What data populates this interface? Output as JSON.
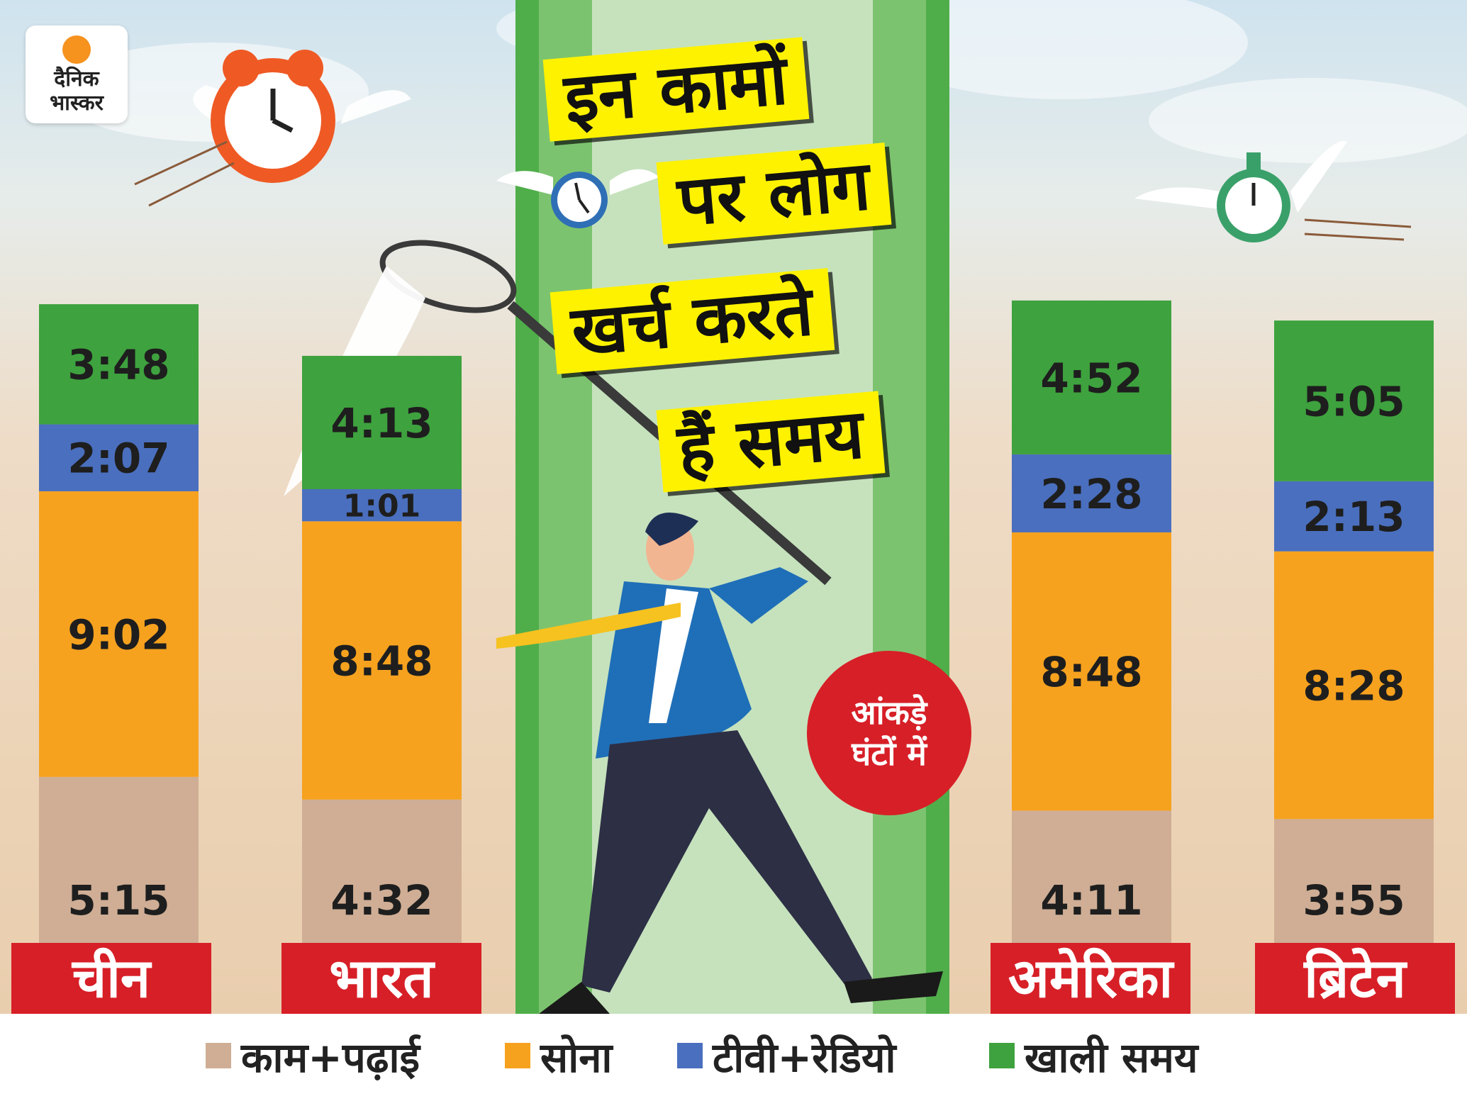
{
  "logo": {
    "line1": "दैनिक",
    "line2": "भास्कर"
  },
  "title_lines": [
    "इन कामों",
    "पर लोग",
    "खर्च करते",
    "हैं समय"
  ],
  "badge": {
    "line1": "आंकड़े",
    "line2": "घंटों में"
  },
  "colors": {
    "work_study": "#cfae95",
    "sleep": "#f6a21f",
    "tv_radio": "#4a6fbe",
    "free_time": "#3ea23e",
    "country_bar": "#d71f27",
    "title_bg": "#fff200"
  },
  "chart_data": {
    "type": "bar",
    "stacked": true,
    "unit": "hours:minutes",
    "categories": [
      "चीन",
      "भारत",
      "अमेरिका",
      "ब्रिटेन"
    ],
    "series": [
      {
        "name": "काम+पढ़ाई",
        "color": "#cfae95",
        "values": [
          "5:15",
          "4:32",
          "4:11",
          "3:55"
        ]
      },
      {
        "name": "सोना",
        "color": "#f6a21f",
        "values": [
          "9:02",
          "8:48",
          "8:48",
          "8:28"
        ]
      },
      {
        "name": "टीवी+रेडियो",
        "color": "#4a6fbe",
        "values": [
          "2:07",
          "1:01",
          "2:28",
          "2:13"
        ]
      },
      {
        "name": "खाली समय",
        "color": "#3ea23e",
        "values": [
          "3:48",
          "4:13",
          "4:52",
          "5:05"
        ]
      }
    ]
  }
}
